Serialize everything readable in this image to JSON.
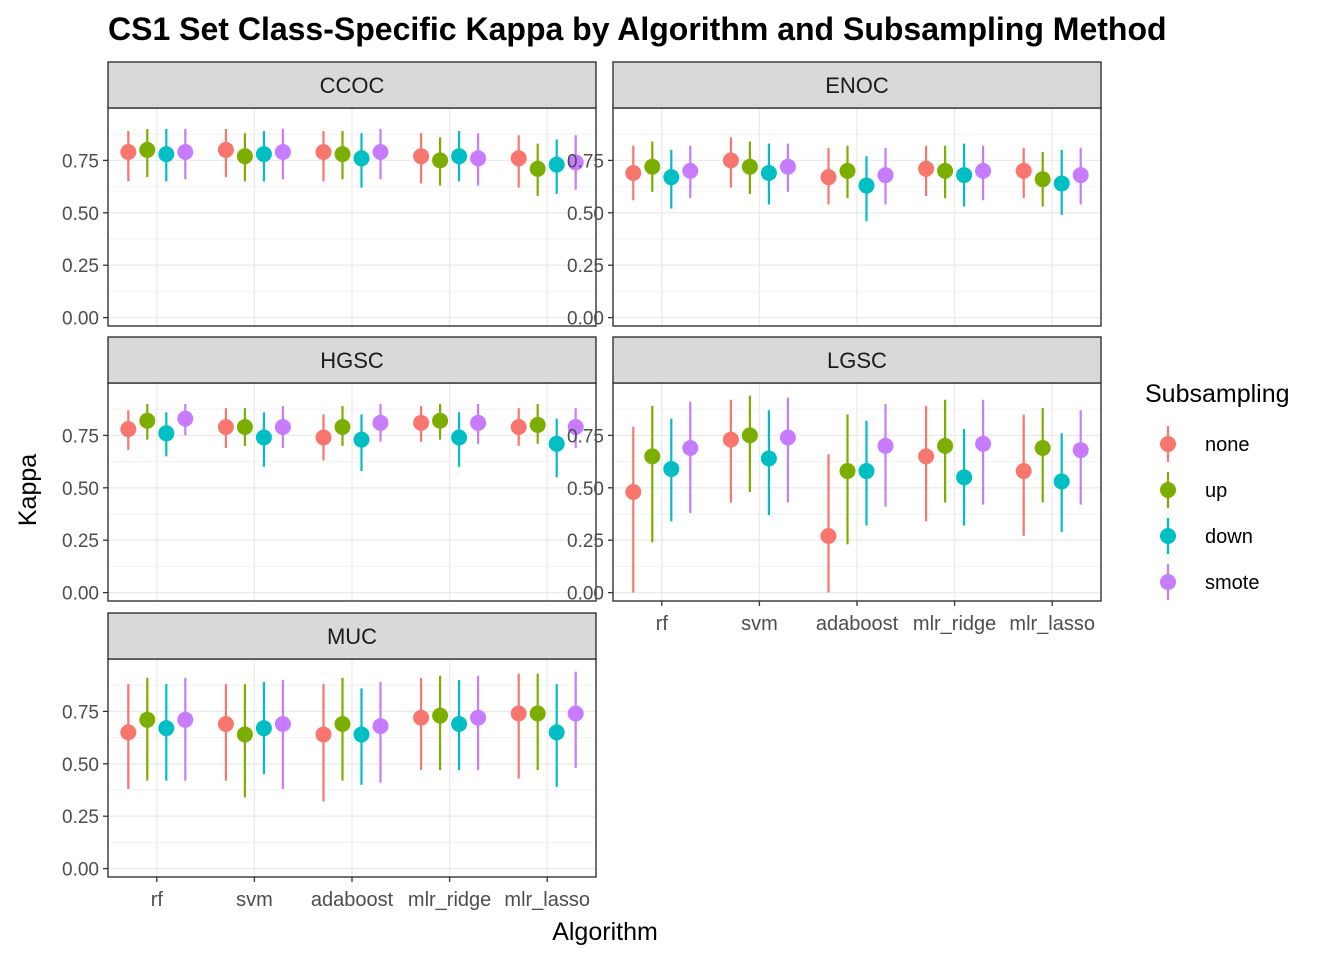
{
  "chart_data": {
    "type": "scatter",
    "title": "CS1 Set Class-Specific Kappa by Algorithm and Subsampling Method",
    "xlabel": "Algorithm",
    "ylabel": "Kappa",
    "categories": [
      "rf",
      "svm",
      "adaboost",
      "mlr_ridge",
      "mlr_lasso"
    ],
    "y_ticks": [
      "0.00",
      "0.25",
      "0.50",
      "0.75"
    ],
    "ylim": [
      -0.04,
      1.0
    ],
    "grid": true,
    "legend": {
      "title": "Subsampling",
      "position": "right",
      "entries": [
        "none",
        "up",
        "down",
        "smote"
      ]
    },
    "series_colors": {
      "none": "#F8766D",
      "up": "#7CAE00",
      "down": "#00BFC4",
      "smote": "#C77CFF"
    },
    "facets": [
      {
        "label": "CCOC",
        "series": [
          {
            "name": "none",
            "values": [
              0.79,
              0.8,
              0.79,
              0.77,
              0.76
            ],
            "lower": [
              0.65,
              0.67,
              0.65,
              0.64,
              0.62
            ],
            "upper": [
              0.89,
              0.9,
              0.89,
              0.88,
              0.87
            ]
          },
          {
            "name": "up",
            "values": [
              0.8,
              0.77,
              0.78,
              0.75,
              0.71
            ],
            "lower": [
              0.67,
              0.65,
              0.66,
              0.63,
              0.58
            ],
            "upper": [
              0.9,
              0.88,
              0.89,
              0.86,
              0.83
            ]
          },
          {
            "name": "down",
            "values": [
              0.78,
              0.78,
              0.76,
              0.77,
              0.73
            ],
            "lower": [
              0.65,
              0.65,
              0.62,
              0.65,
              0.59
            ],
            "upper": [
              0.9,
              0.89,
              0.88,
              0.89,
              0.85
            ]
          },
          {
            "name": "smote",
            "values": [
              0.79,
              0.79,
              0.79,
              0.76,
              0.74
            ],
            "lower": [
              0.66,
              0.66,
              0.66,
              0.63,
              0.61
            ],
            "upper": [
              0.9,
              0.9,
              0.9,
              0.88,
              0.87
            ]
          }
        ]
      },
      {
        "label": "ENOC",
        "series": [
          {
            "name": "none",
            "values": [
              0.69,
              0.75,
              0.67,
              0.71,
              0.7
            ],
            "lower": [
              0.56,
              0.62,
              0.54,
              0.58,
              0.57
            ],
            "upper": [
              0.82,
              0.86,
              0.81,
              0.82,
              0.81
            ]
          },
          {
            "name": "up",
            "values": [
              0.72,
              0.72,
              0.7,
              0.7,
              0.66
            ],
            "lower": [
              0.6,
              0.59,
              0.57,
              0.57,
              0.53
            ],
            "upper": [
              0.84,
              0.84,
              0.82,
              0.82,
              0.79
            ]
          },
          {
            "name": "down",
            "values": [
              0.67,
              0.69,
              0.63,
              0.68,
              0.64
            ],
            "lower": [
              0.52,
              0.54,
              0.46,
              0.53,
              0.49
            ],
            "upper": [
              0.8,
              0.83,
              0.77,
              0.83,
              0.8
            ]
          },
          {
            "name": "smote",
            "values": [
              0.7,
              0.72,
              0.68,
              0.7,
              0.68
            ],
            "lower": [
              0.57,
              0.6,
              0.54,
              0.56,
              0.54
            ],
            "upper": [
              0.82,
              0.83,
              0.81,
              0.82,
              0.81
            ]
          }
        ]
      },
      {
        "label": "HGSC",
        "series": [
          {
            "name": "none",
            "values": [
              0.78,
              0.79,
              0.74,
              0.81,
              0.79
            ],
            "lower": [
              0.68,
              0.69,
              0.63,
              0.72,
              0.7
            ],
            "upper": [
              0.87,
              0.88,
              0.85,
              0.89,
              0.88
            ]
          },
          {
            "name": "up",
            "values": [
              0.82,
              0.79,
              0.79,
              0.82,
              0.8
            ],
            "lower": [
              0.73,
              0.7,
              0.7,
              0.73,
              0.71
            ],
            "upper": [
              0.9,
              0.88,
              0.89,
              0.9,
              0.9
            ]
          },
          {
            "name": "down",
            "values": [
              0.76,
              0.74,
              0.73,
              0.74,
              0.71
            ],
            "lower": [
              0.65,
              0.6,
              0.58,
              0.6,
              0.55
            ],
            "upper": [
              0.86,
              0.86,
              0.85,
              0.86,
              0.83
            ]
          },
          {
            "name": "smote",
            "values": [
              0.83,
              0.79,
              0.81,
              0.81,
              0.79
            ],
            "lower": [
              0.75,
              0.69,
              0.72,
              0.71,
              0.69
            ],
            "upper": [
              0.9,
              0.89,
              0.9,
              0.9,
              0.88
            ]
          }
        ]
      },
      {
        "label": "LGSC",
        "series": [
          {
            "name": "none",
            "values": [
              0.48,
              0.73,
              0.27,
              0.65,
              0.58
            ],
            "lower": [
              0.0,
              0.43,
              0.0,
              0.34,
              0.27
            ],
            "upper": [
              0.79,
              0.92,
              0.66,
              0.89,
              0.85
            ]
          },
          {
            "name": "up",
            "values": [
              0.65,
              0.75,
              0.58,
              0.7,
              0.69
            ],
            "lower": [
              0.24,
              0.48,
              0.23,
              0.43,
              0.43
            ],
            "upper": [
              0.89,
              0.94,
              0.85,
              0.92,
              0.88
            ]
          },
          {
            "name": "down",
            "values": [
              0.59,
              0.64,
              0.58,
              0.55,
              0.53
            ],
            "lower": [
              0.34,
              0.37,
              0.32,
              0.32,
              0.29
            ],
            "upper": [
              0.83,
              0.87,
              0.82,
              0.78,
              0.76
            ]
          },
          {
            "name": "smote",
            "values": [
              0.69,
              0.74,
              0.7,
              0.71,
              0.68
            ],
            "lower": [
              0.38,
              0.43,
              0.41,
              0.42,
              0.42
            ],
            "upper": [
              0.91,
              0.93,
              0.9,
              0.92,
              0.87
            ]
          }
        ]
      },
      {
        "label": "MUC",
        "series": [
          {
            "name": "none",
            "values": [
              0.65,
              0.69,
              0.64,
              0.72,
              0.74
            ],
            "lower": [
              0.38,
              0.42,
              0.32,
              0.47,
              0.43
            ],
            "upper": [
              0.88,
              0.88,
              0.88,
              0.91,
              0.93
            ]
          },
          {
            "name": "up",
            "values": [
              0.71,
              0.64,
              0.69,
              0.73,
              0.74
            ],
            "lower": [
              0.42,
              0.34,
              0.42,
              0.47,
              0.47
            ],
            "upper": [
              0.91,
              0.88,
              0.91,
              0.92,
              0.93
            ]
          },
          {
            "name": "down",
            "values": [
              0.67,
              0.67,
              0.64,
              0.69,
              0.65
            ],
            "lower": [
              0.42,
              0.45,
              0.4,
              0.47,
              0.39
            ],
            "upper": [
              0.88,
              0.89,
              0.86,
              0.9,
              0.88
            ]
          },
          {
            "name": "smote",
            "values": [
              0.71,
              0.69,
              0.68,
              0.72,
              0.74
            ],
            "lower": [
              0.42,
              0.38,
              0.41,
              0.47,
              0.48
            ],
            "upper": [
              0.91,
              0.9,
              0.89,
              0.92,
              0.94
            ]
          }
        ]
      }
    ]
  }
}
